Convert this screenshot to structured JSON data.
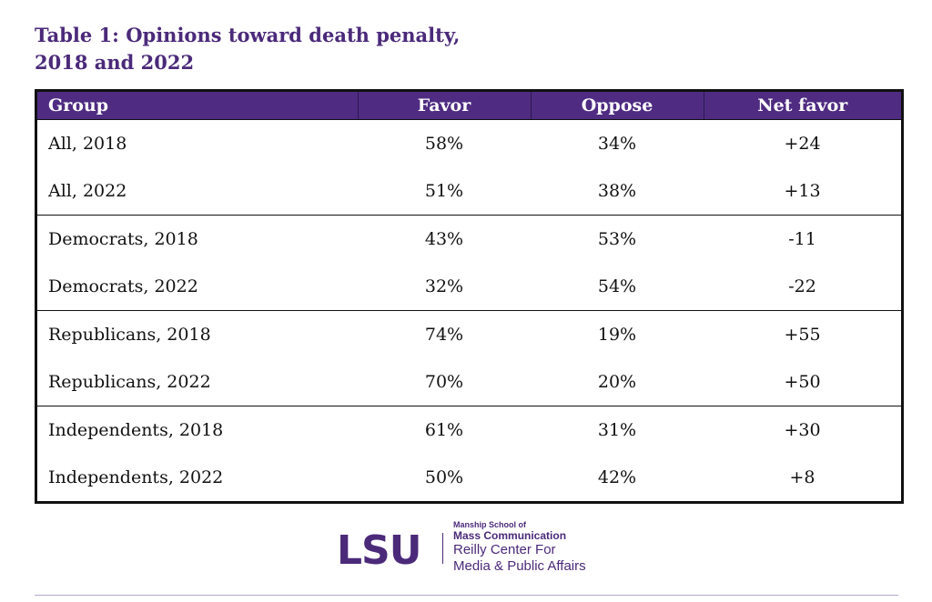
{
  "title": {
    "line1": "Table 1: Opinions toward death penalty,",
    "line2": "2018 and 2022"
  },
  "table": {
    "headers": [
      "Group",
      "Favor",
      "Oppose",
      "Net favor"
    ],
    "rows": [
      [
        "All, 2018",
        "58%",
        "34%",
        "+24"
      ],
      [
        "All, 2022",
        "51%",
        "38%",
        "+13"
      ],
      [
        "Democrats, 2018",
        "43%",
        "53%",
        "-11"
      ],
      [
        "Democrats, 2022",
        "32%",
        "54%",
        "-22"
      ],
      [
        "Republicans, 2018",
        "74%",
        "19%",
        "+55"
      ],
      [
        "Republicans, 2022",
        "70%",
        "20%",
        "+50"
      ],
      [
        "Independents, 2018",
        "61%",
        "31%",
        "+30"
      ],
      [
        "Independents, 2022",
        "50%",
        "42%",
        "+8"
      ]
    ]
  },
  "logo": {
    "mark": "LSU",
    "line1": "Manship School of",
    "line2": "Mass Communication",
    "line3": "Reilly Center For",
    "line4": "Media & Public Affairs"
  },
  "colors": {
    "accent": "#4f2c82",
    "title": "#4b2a7a"
  }
}
